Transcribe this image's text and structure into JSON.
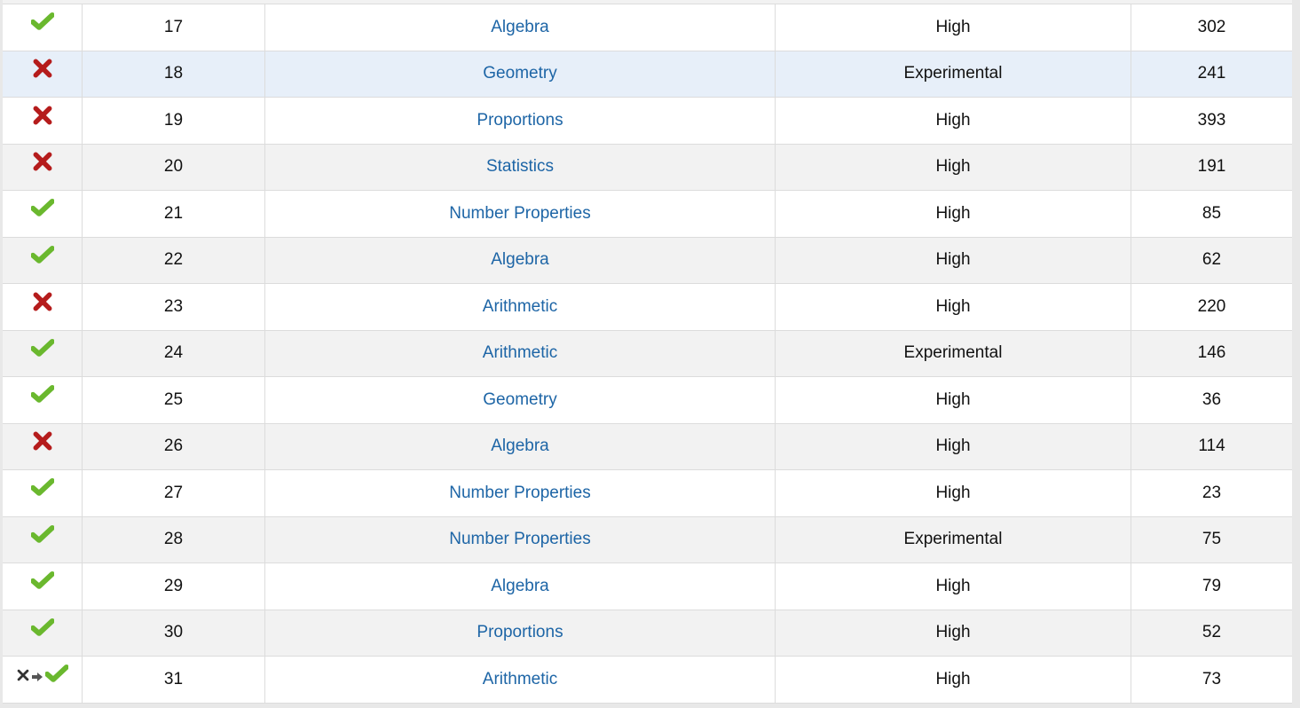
{
  "colors": {
    "correct": "#6ab82e",
    "incorrect": "#b51c1c",
    "link": "#1d65a6",
    "highlight_row": "#e7eff9"
  },
  "rows": [
    {
      "status": "correct",
      "number": "17",
      "topic": "Algebra",
      "difficulty": "High",
      "time": "302"
    },
    {
      "status": "incorrect",
      "number": "18",
      "topic": "Geometry",
      "difficulty": "Experimental",
      "time": "241",
      "highlighted": true
    },
    {
      "status": "incorrect",
      "number": "19",
      "topic": "Proportions",
      "difficulty": "High",
      "time": "393"
    },
    {
      "status": "incorrect",
      "number": "20",
      "topic": "Statistics",
      "difficulty": "High",
      "time": "191"
    },
    {
      "status": "correct",
      "number": "21",
      "topic": "Number Properties",
      "difficulty": "High",
      "time": "85"
    },
    {
      "status": "correct",
      "number": "22",
      "topic": "Algebra",
      "difficulty": "High",
      "time": "62"
    },
    {
      "status": "incorrect",
      "number": "23",
      "topic": "Arithmetic",
      "difficulty": "High",
      "time": "220"
    },
    {
      "status": "correct",
      "number": "24",
      "topic": "Arithmetic",
      "difficulty": "Experimental",
      "time": "146"
    },
    {
      "status": "correct",
      "number": "25",
      "topic": "Geometry",
      "difficulty": "High",
      "time": "36"
    },
    {
      "status": "incorrect",
      "number": "26",
      "topic": "Algebra",
      "difficulty": "High",
      "time": "114"
    },
    {
      "status": "correct",
      "number": "27",
      "topic": "Number Properties",
      "difficulty": "High",
      "time": "23"
    },
    {
      "status": "correct",
      "number": "28",
      "topic": "Number Properties",
      "difficulty": "Experimental",
      "time": "75"
    },
    {
      "status": "correct",
      "number": "29",
      "topic": "Algebra",
      "difficulty": "High",
      "time": "79"
    },
    {
      "status": "correct",
      "number": "30",
      "topic": "Proportions",
      "difficulty": "High",
      "time": "52"
    },
    {
      "status": "changed-to-correct",
      "number": "31",
      "topic": "Arithmetic",
      "difficulty": "High",
      "time": "73"
    }
  ]
}
